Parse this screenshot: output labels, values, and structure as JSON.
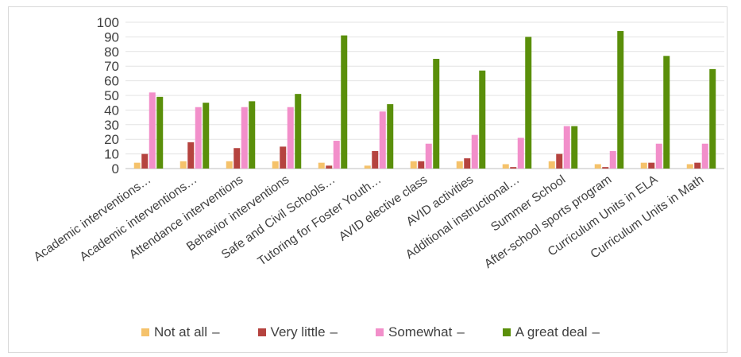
{
  "chart_data": {
    "type": "bar",
    "categories": [
      "Academic interventions…",
      "Academic interventions…",
      "Attendance interventions",
      "Behavior interventions",
      "Safe and Civil Schools…",
      "Tutoring for Foster Youth…",
      "AVID elective class",
      "AVID activities",
      "Additional instructional…",
      "Summer School",
      "After-school sports program",
      "Curriculum Units in ELA",
      "Curriculum Units in Math"
    ],
    "series": [
      {
        "name": "Not at all",
        "color": "#f5c26b",
        "values": [
          4,
          5,
          5,
          5,
          4,
          2,
          5,
          5,
          3,
          5,
          3,
          4,
          3
        ]
      },
      {
        "name": "Very little",
        "color": "#b5433f",
        "values": [
          10,
          18,
          14,
          15,
          2,
          12,
          5,
          7,
          1,
          10,
          1,
          4,
          4
        ]
      },
      {
        "name": "Somewhat",
        "color": "#f28fca",
        "values": [
          52,
          42,
          42,
          42,
          19,
          39,
          17,
          23,
          21,
          29,
          12,
          17,
          17
        ]
      },
      {
        "name": "A great deal",
        "color": "#5a8f0a",
        "values": [
          49,
          45,
          46,
          51,
          91,
          44,
          75,
          67,
          90,
          29,
          94,
          77,
          68
        ]
      }
    ],
    "ylim": [
      0,
      100
    ],
    "yticks": [
      0,
      10,
      20,
      30,
      40,
      50,
      60,
      70,
      80,
      90,
      100
    ],
    "grid": true,
    "legend": "bottom",
    "legend_suffix": "–"
  }
}
